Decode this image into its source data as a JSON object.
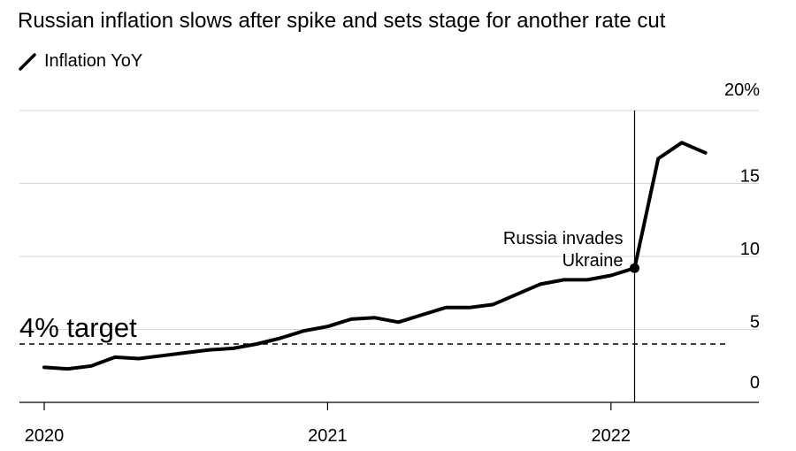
{
  "title": "Russian inflation slows after spike and sets stage for another rate cut",
  "legend": {
    "label": "Inflation YoY"
  },
  "chart_data": {
    "type": "line",
    "title": "Russian inflation slows after spike and sets stage for another rate cut",
    "xlabel": "",
    "ylabel": "",
    "grid": true,
    "legend_position": "top-left",
    "series": [
      {
        "name": "Inflation YoY",
        "color": "#000000",
        "points": [
          {
            "x": "2020-01",
            "y": 2.4
          },
          {
            "x": "2020-02",
            "y": 2.3
          },
          {
            "x": "2020-03",
            "y": 2.5
          },
          {
            "x": "2020-04",
            "y": 3.1
          },
          {
            "x": "2020-05",
            "y": 3.0
          },
          {
            "x": "2020-06",
            "y": 3.2
          },
          {
            "x": "2020-07",
            "y": 3.4
          },
          {
            "x": "2020-08",
            "y": 3.6
          },
          {
            "x": "2020-09",
            "y": 3.7
          },
          {
            "x": "2020-10",
            "y": 4.0
          },
          {
            "x": "2020-11",
            "y": 4.4
          },
          {
            "x": "2020-12",
            "y": 4.9
          },
          {
            "x": "2021-01",
            "y": 5.2
          },
          {
            "x": "2021-02",
            "y": 5.7
          },
          {
            "x": "2021-03",
            "y": 5.8
          },
          {
            "x": "2021-04",
            "y": 5.5
          },
          {
            "x": "2021-05",
            "y": 6.0
          },
          {
            "x": "2021-06",
            "y": 6.5
          },
          {
            "x": "2021-07",
            "y": 6.5
          },
          {
            "x": "2021-08",
            "y": 6.7
          },
          {
            "x": "2021-09",
            "y": 7.4
          },
          {
            "x": "2021-10",
            "y": 8.1
          },
          {
            "x": "2021-11",
            "y": 8.4
          },
          {
            "x": "2021-12",
            "y": 8.4
          },
          {
            "x": "2022-01",
            "y": 8.7
          },
          {
            "x": "2022-02",
            "y": 9.2
          },
          {
            "x": "2022-03",
            "y": 16.7
          },
          {
            "x": "2022-04",
            "y": 17.8
          },
          {
            "x": "2022-05",
            "y": 17.1
          }
        ]
      }
    ],
    "x_range": [
      "2020-01",
      "2022-08"
    ],
    "x_tick_labels": [
      "2020",
      "2021",
      "2022"
    ],
    "x_ticks": [
      "2020-01",
      "2021-01",
      "2022-01"
    ],
    "ylim": [
      0,
      20
    ],
    "y_ticks": [
      0,
      5,
      10,
      15,
      20
    ],
    "y_tick_labels": [
      "0",
      "5",
      "10",
      "15",
      "20%"
    ],
    "y_axis_position": "right",
    "reference_line": {
      "y": 4,
      "style": "dashed",
      "label": "4% target"
    },
    "event": {
      "x": "2022-02",
      "label_lines": [
        "Russia invades",
        "Ukraine"
      ]
    }
  }
}
